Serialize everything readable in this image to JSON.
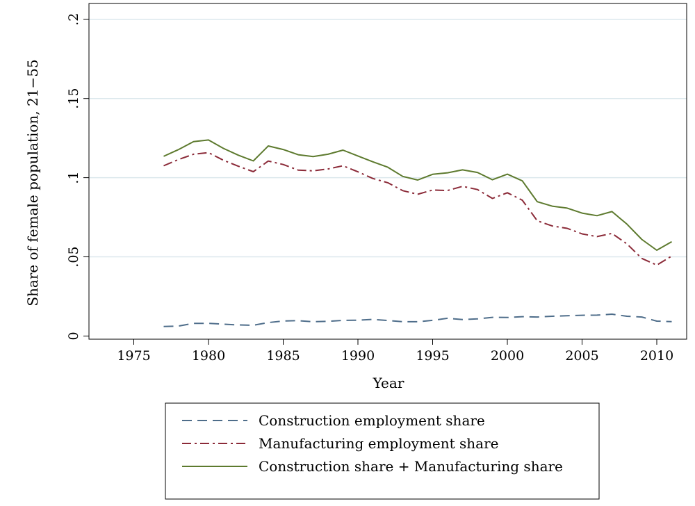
{
  "colors": {
    "construction": "#4e6d8a",
    "manufacturing": "#8b2a38",
    "combined": "#5d7a2e",
    "grid": "#dbe7ec"
  },
  "chart_data": {
    "type": "line",
    "title": "",
    "xlabel": "Year",
    "ylabel": "Share of female population, 21−55",
    "xlim": [
      1972,
      2012
    ],
    "ylim": [
      -0.002,
      0.21
    ],
    "x_ticks": [
      1975,
      1980,
      1985,
      1990,
      1995,
      2000,
      2005,
      2010
    ],
    "x_tick_labels": [
      "1975",
      "1980",
      "1985",
      "1990",
      "1995",
      "2000",
      "2005",
      "2010"
    ],
    "y_ticks": [
      0,
      0.05,
      0.1,
      0.15,
      0.2
    ],
    "y_tick_labels": [
      "0",
      ".05",
      ".1",
      ".15",
      ".2"
    ],
    "grid": true,
    "legend_position": "bottom",
    "x": [
      1977,
      1978,
      1979,
      1980,
      1981,
      1982,
      1983,
      1984,
      1985,
      1986,
      1987,
      1988,
      1989,
      1990,
      1991,
      1992,
      1993,
      1994,
      1995,
      1996,
      1997,
      1998,
      1999,
      2000,
      2001,
      2002,
      2003,
      2004,
      2005,
      2006,
      2007,
      2008,
      2009,
      2010,
      2011
    ],
    "series": [
      {
        "name": "Construction employment share",
        "style": "dashed",
        "values": [
          0.006,
          0.0063,
          0.008,
          0.008,
          0.0075,
          0.007,
          0.0068,
          0.0085,
          0.0095,
          0.0097,
          0.009,
          0.0093,
          0.0099,
          0.01,
          0.0105,
          0.0098,
          0.009,
          0.009,
          0.0099,
          0.0112,
          0.0104,
          0.0108,
          0.0118,
          0.0117,
          0.0122,
          0.012,
          0.0125,
          0.0128,
          0.0131,
          0.0132,
          0.0138,
          0.0125,
          0.012,
          0.0094,
          0.0091
        ]
      },
      {
        "name": "Manufacturing employment share",
        "style": "dashdot",
        "values": [
          0.1075,
          0.1115,
          0.1148,
          0.1158,
          0.111,
          0.1072,
          0.1038,
          0.1105,
          0.1083,
          0.1048,
          0.1043,
          0.1055,
          0.1075,
          0.1037,
          0.0995,
          0.0968,
          0.0918,
          0.0895,
          0.0922,
          0.0919,
          0.0945,
          0.0925,
          0.0869,
          0.0905,
          0.0858,
          0.0728,
          0.0695,
          0.068,
          0.0645,
          0.0628,
          0.0648,
          0.0582,
          0.049,
          0.0448,
          0.0505
        ]
      },
      {
        "name": "Construction share + Manufacturing share",
        "style": "solid",
        "values": [
          0.1135,
          0.1178,
          0.1228,
          0.1238,
          0.1185,
          0.1142,
          0.1106,
          0.12,
          0.1178,
          0.1145,
          0.1133,
          0.1148,
          0.1174,
          0.1137,
          0.11,
          0.1066,
          0.1008,
          0.0985,
          0.1021,
          0.1031,
          0.1049,
          0.1033,
          0.0987,
          0.1022,
          0.098,
          0.0848,
          0.082,
          0.0808,
          0.0776,
          0.076,
          0.0786,
          0.0707,
          0.061,
          0.0542,
          0.0596
        ]
      }
    ]
  }
}
